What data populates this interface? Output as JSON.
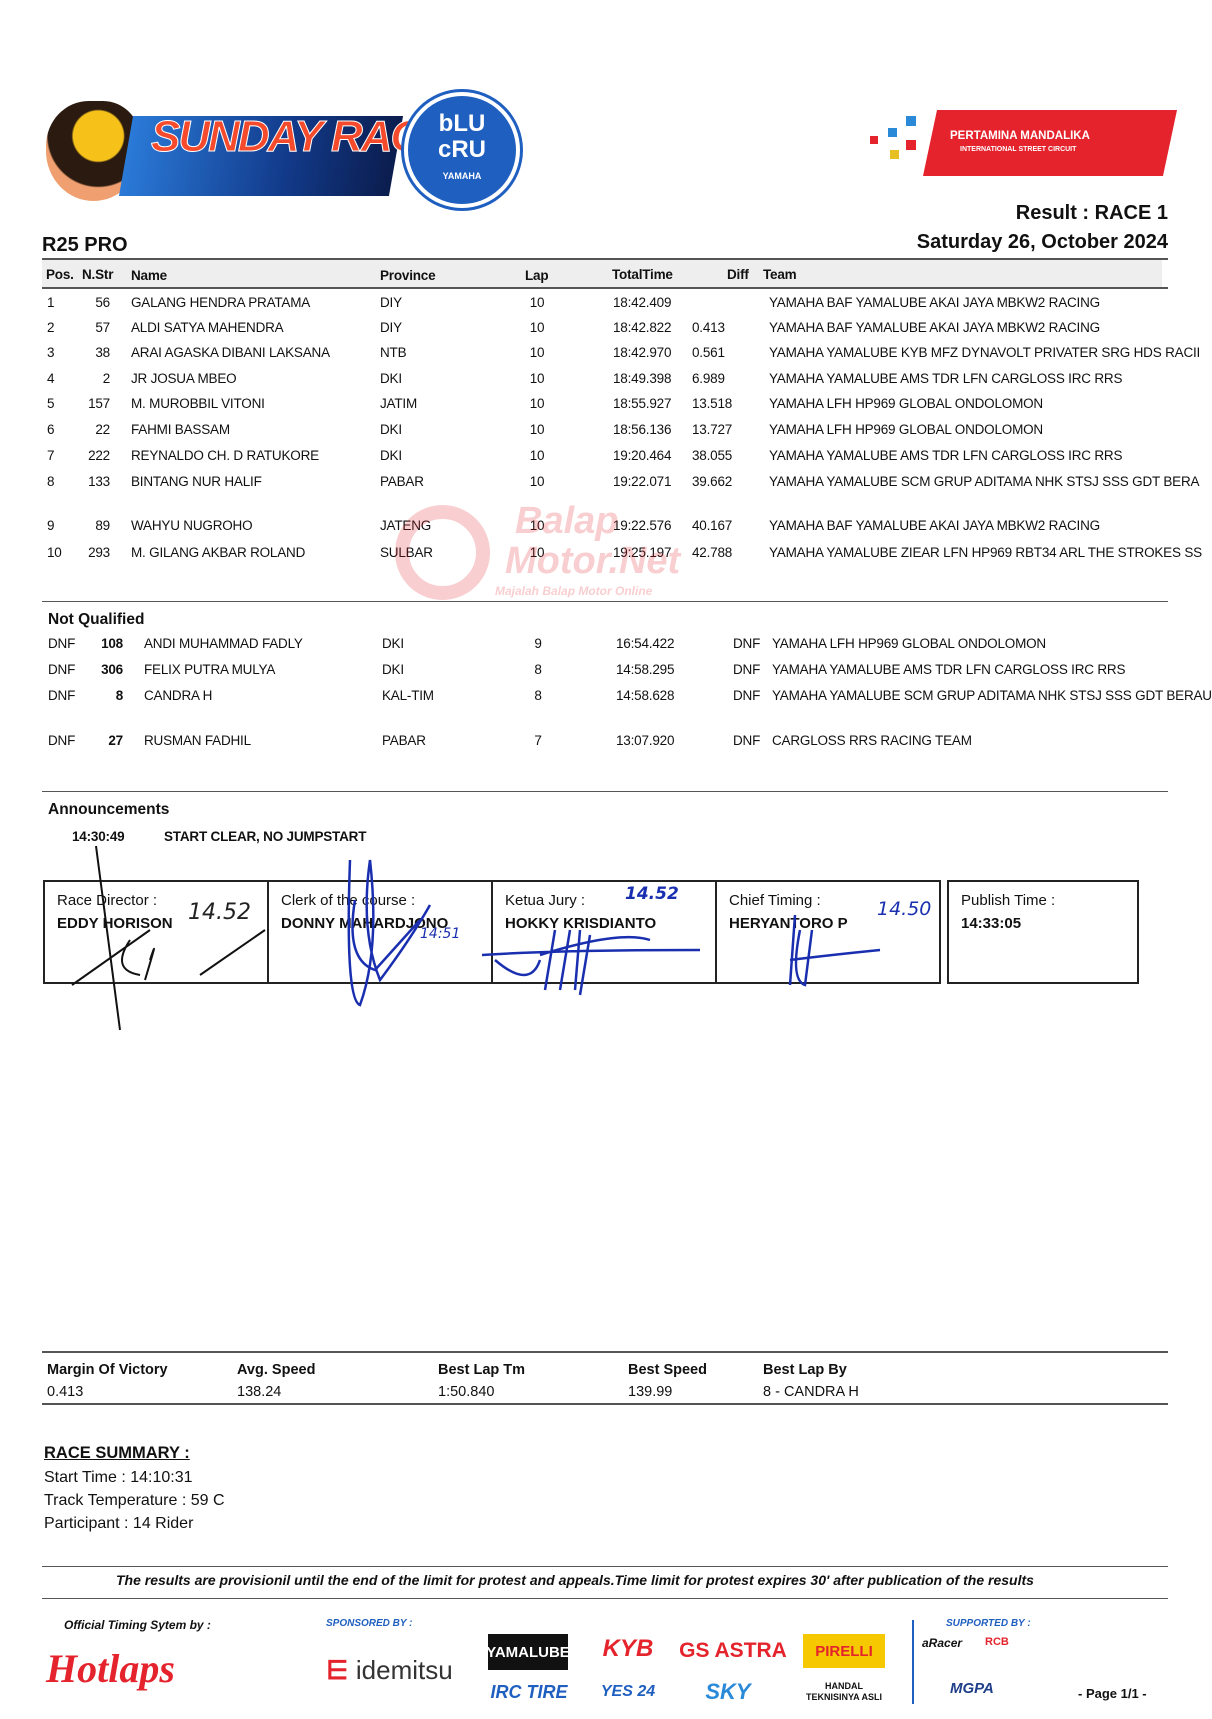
{
  "logos": {
    "sunday_race": "SUNDAY RACE",
    "blu_cru": [
      "bLU",
      "cRU",
      "YAMAHA"
    ],
    "mandalika": [
      "PERTAMINA MANDALIKA",
      "INTERNATIONAL STREET CIRCUIT"
    ],
    "watermark": [
      "Balap",
      "Motor.Net",
      "Majalah Balap Motor Online"
    ]
  },
  "header": {
    "result": "Result : RACE 1",
    "date": "Saturday 26, October 2024",
    "class": "R25 PRO"
  },
  "columns": {
    "pos": "Pos.",
    "nstr": "N.Str",
    "name": "Name",
    "province": "Province",
    "lap": "Lap",
    "total": "TotalTime",
    "diff": "Diff",
    "team": "Team"
  },
  "results": [
    {
      "pos": "1",
      "nstr": "56",
      "name": "GALANG HENDRA PRATAMA",
      "province": "DIY",
      "lap": "10",
      "total": "18:42.409",
      "diff": "",
      "team": "YAMAHA BAF YAMALUBE AKAI JAYA MBKW2 RACING"
    },
    {
      "pos": "2",
      "nstr": "57",
      "name": "ALDI SATYA MAHENDRA",
      "province": "DIY",
      "lap": "10",
      "total": "18:42.822",
      "diff": "0.413",
      "team": "YAMAHA BAF YAMALUBE AKAI JAYA MBKW2 RACING"
    },
    {
      "pos": "3",
      "nstr": "38",
      "name": "ARAI AGASKA DIBANI LAKSANA",
      "province": "NTB",
      "lap": "10",
      "total": "18:42.970",
      "diff": "0.561",
      "team": "YAMAHA YAMALUBE KYB MFZ DYNAVOLT PRIVATER SRG HDS RACII"
    },
    {
      "pos": "4",
      "nstr": "2",
      "name": "JR JOSUA MBEO",
      "province": "DKI",
      "lap": "10",
      "total": "18:49.398",
      "diff": "6.989",
      "team": "YAMAHA YAMALUBE AMS TDR LFN CARGLOSS IRC RRS"
    },
    {
      "pos": "5",
      "nstr": "157",
      "name": "M. MUROBBIL VITONI",
      "province": "JATIM",
      "lap": "10",
      "total": "18:55.927",
      "diff": "13.518",
      "team": "YAMAHA LFH HP969 GLOBAL ONDOLOMON"
    },
    {
      "pos": "6",
      "nstr": "22",
      "name": "FAHMI BASSAM",
      "province": "DKI",
      "lap": "10",
      "total": "18:56.136",
      "diff": "13.727",
      "team": "YAMAHA LFH HP969 GLOBAL ONDOLOMON"
    },
    {
      "pos": "7",
      "nstr": "222",
      "name": "REYNALDO CH. D RATUKORE",
      "province": "DKI",
      "lap": "10",
      "total": "19:20.464",
      "diff": "38.055",
      "team": "YAMAHA YAMALUBE AMS TDR LFN CARGLOSS IRC RRS"
    },
    {
      "pos": "8",
      "nstr": "133",
      "name": "BINTANG NUR HALIF",
      "province": "PABAR",
      "lap": "10",
      "total": "19:22.071",
      "diff": "39.662",
      "team": "YAMAHA YAMALUBE SCM GRUP ADITAMA NHK STSJ SSS GDT BERA"
    },
    {
      "pos": "9",
      "nstr": "89",
      "name": "WAHYU NUGROHO",
      "province": "JATENG",
      "lap": "10",
      "total": "19:22.576",
      "diff": "40.167",
      "team": "YAMAHA BAF YAMALUBE AKAI JAYA MBKW2 RACING"
    },
    {
      "pos": "10",
      "nstr": "293",
      "name": "M. GILANG AKBAR ROLAND",
      "province": "SULBAR",
      "lap": "10",
      "total": "19:25.197",
      "diff": "42.788",
      "team": "YAMAHA YAMALUBE ZIEAR LFN HP969 RBT34 ARL THE STROKES SS"
    }
  ],
  "not_qualified": {
    "title": "Not Qualified",
    "rows": [
      {
        "pos": "DNF",
        "nstr": "108",
        "name": "ANDI MUHAMMAD FADLY",
        "province": "DKI",
        "lap": "9",
        "total": "16:54.422",
        "diff": "DNF",
        "team": "YAMAHA LFH HP969 GLOBAL ONDOLOMON"
      },
      {
        "pos": "DNF",
        "nstr": "306",
        "name": "FELIX PUTRA MULYA",
        "province": "DKI",
        "lap": "8",
        "total": "14:58.295",
        "diff": "DNF",
        "team": "YAMAHA YAMALUBE AMS TDR LFN CARGLOSS IRC RRS"
      },
      {
        "pos": "DNF",
        "nstr": "8",
        "name": "CANDRA H",
        "province": "KAL-TIM",
        "lap": "8",
        "total": "14:58.628",
        "diff": "DNF",
        "team": "YAMAHA YAMALUBE SCM GRUP ADITAMA NHK STSJ SSS GDT BERAU"
      },
      {
        "pos": "DNF",
        "nstr": "27",
        "name": "RUSMAN FADHIL",
        "province": "PABAR",
        "lap": "7",
        "total": "13:07.920",
        "diff": "DNF",
        "team": "CARGLOSS RRS RACING TEAM"
      }
    ]
  },
  "announcements": {
    "title": "Announcements",
    "time": "14:30:49",
    "text": "START CLEAR, NO JUMPSTART"
  },
  "signatures": [
    {
      "label": "Race Director :",
      "name": "EDDY HORISON",
      "time": "14.52"
    },
    {
      "label": "Clerk of the course :",
      "name": "DONNY MAHARDJONO",
      "time": "14:51"
    },
    {
      "label": "Ketua Jury :",
      "name": "HOKKY KRISDIANTO",
      "time": "14.52"
    },
    {
      "label": "Chief Timing :",
      "name": "HERYANTORO P",
      "time": "14.50"
    }
  ],
  "publish": {
    "label": "Publish Time :",
    "value": "14:33:05"
  },
  "stats": [
    {
      "label": "Margin Of Victory",
      "value": "0.413"
    },
    {
      "label": "Avg. Speed",
      "value": "138.24"
    },
    {
      "label": "Best Lap Tm",
      "value": "1:50.840"
    },
    {
      "label": "Best Speed",
      "value": "139.99"
    },
    {
      "label": "Best Lap By",
      "value": "8 - CANDRA H"
    }
  ],
  "summary": {
    "title": "RACE SUMMARY :",
    "start": "Start Time : 14:10:31",
    "temp": "Track Temperature : 59 C",
    "participant": "Participant : 14 Rider"
  },
  "disclaimer": "The results are provisionil until the end of the limit for protest and appeals.Time limit for protest expires 30' after publication of the results",
  "footer": {
    "timing_label": "Official Timing Sytem by :",
    "timing_logo": "Hotlaps",
    "sponsored_label": "SPONSORED BY :",
    "sponsors": [
      "idemitsu",
      "YAMALUBE",
      "KYB",
      "GS ASTRA",
      "PIRELLI",
      "IRC TIRE",
      "YES 24",
      "SKY",
      "HANDAL TEKNISINYA ASLI"
    ],
    "supported_label": "SUPPORTED BY :",
    "supporters": [
      "aRacer",
      "RCB",
      "MGPA"
    ],
    "page": "- Page 1/1 -"
  },
  "colors": {
    "red": "#e4232c",
    "blue": "#1f5fc0",
    "ink": "#1a2fb0"
  }
}
